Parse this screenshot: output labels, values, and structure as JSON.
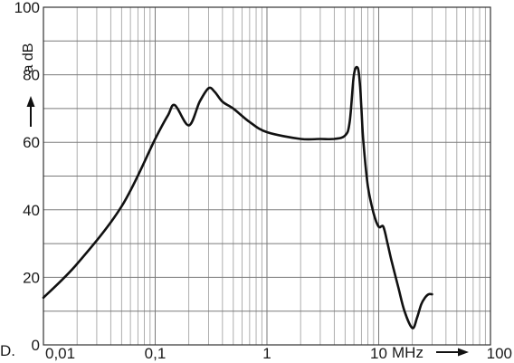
{
  "chart_data": {
    "type": "line",
    "x_scale": "log",
    "xlim": [
      0.01,
      100
    ],
    "ylim": [
      0,
      100
    ],
    "grid": true,
    "x_tick_labels": [
      "0,01",
      "0,1",
      "1",
      "10",
      "100"
    ],
    "y_tick_labels": [
      "0",
      "20",
      "40",
      "60",
      "80",
      "100"
    ],
    "xlabel": "MHz",
    "ylabel": "a dB",
    "corner_text": "D.",
    "series": [
      {
        "x": [
          0.01,
          0.02,
          0.05,
          0.1,
          0.13,
          0.15,
          0.2,
          0.25,
          0.3,
          0.34,
          0.4,
          0.5,
          0.7,
          1,
          2,
          3,
          4,
          5,
          5.5,
          6,
          6.5,
          6.8,
          7,
          7.3,
          8,
          9,
          10,
          11,
          12,
          13,
          15,
          17,
          20,
          22,
          24,
          26,
          28,
          30
        ],
        "y": [
          14,
          24,
          41,
          61,
          68,
          71,
          65,
          72,
          76,
          75,
          72,
          70,
          66,
          63,
          61,
          61,
          61,
          62,
          66,
          80,
          82,
          77,
          70,
          60,
          47,
          39,
          35,
          35,
          30,
          25,
          17,
          10,
          5,
          8,
          12,
          14,
          15,
          15
        ]
      }
    ]
  }
}
